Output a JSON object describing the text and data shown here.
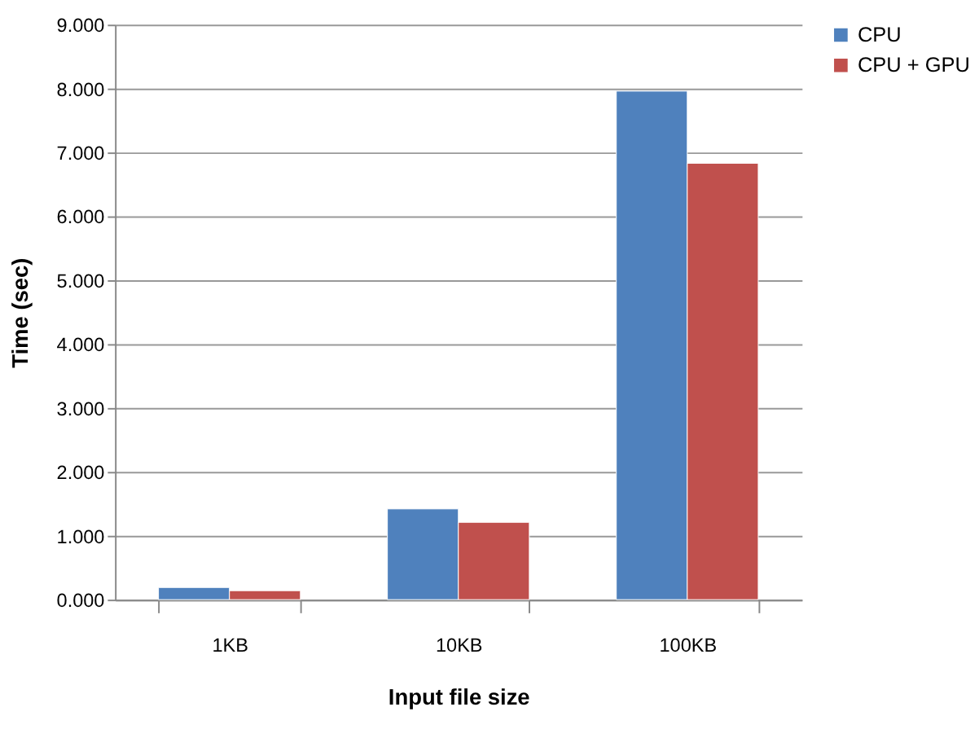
{
  "chart_data": {
    "type": "bar",
    "xlabel": "Input file size",
    "ylabel": "Time (sec)",
    "categories": [
      "1KB",
      "10KB",
      "100KB"
    ],
    "series": [
      {
        "name": "CPU",
        "color": "#4f81bd",
        "values": [
          0.19,
          1.42,
          7.96
        ]
      },
      {
        "name": "CPU + GPU",
        "color": "#c0504d",
        "values": [
          0.14,
          1.21,
          6.83
        ]
      }
    ],
    "ylim": [
      0,
      9
    ],
    "yticks": [
      {
        "value": 0,
        "label": "0.000"
      },
      {
        "value": 1,
        "label": "1.000"
      },
      {
        "value": 2,
        "label": "2.000"
      },
      {
        "value": 3,
        "label": "3.000"
      },
      {
        "value": 4,
        "label": "4.000"
      },
      {
        "value": 5,
        "label": "5.000"
      },
      {
        "value": 6,
        "label": "6.000"
      },
      {
        "value": 7,
        "label": "7.000"
      },
      {
        "value": 8,
        "label": "8.000"
      },
      {
        "value": 9,
        "label": "9.000"
      }
    ],
    "grid": "y",
    "legend": "right"
  }
}
